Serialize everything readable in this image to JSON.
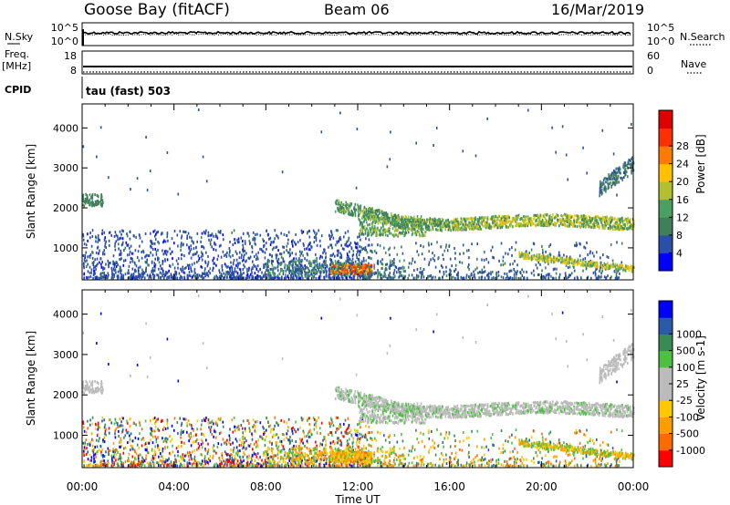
{
  "header": {
    "title_left": "Goose Bay (fitACF)",
    "title_center": "Beam 06",
    "title_right": "16/Mar/2019"
  },
  "nsky_panel": {
    "left_label": "N.Sky",
    "right_label": "N.Search",
    "ticks_left": [
      "10^5",
      "10^0"
    ],
    "ticks_right": [
      "10^5",
      "10^0"
    ]
  },
  "freq_panel": {
    "left_label_1": "Freq.",
    "left_label_2": "[MHz]",
    "right_label": "Nave",
    "ticks_left": [
      "18",
      "8"
    ],
    "ticks_right": [
      "60",
      "0"
    ]
  },
  "cpid": {
    "label": "CPID",
    "value": "tau (fast) 503"
  },
  "colors": {
    "power": [
      "#0000ff",
      "#2a4fa8",
      "#3f7f5a",
      "#4aa060",
      "#b0c030",
      "#ffc000",
      "#ff7a00",
      "#ff3000",
      "#e00000"
    ],
    "velocity": [
      "#ff0000",
      "#ff6a00",
      "#ff9c00",
      "#ffc800",
      "#bbbbbb",
      "#bbbbbb",
      "#4cc040",
      "#3a8a55",
      "#2a5aa8",
      "#0000ff"
    ]
  },
  "chart_data": [
    {
      "type": "heatmap",
      "name": "power",
      "xlabel": "",
      "ylabel": "Slant Range [km]",
      "xlim": [
        0,
        24
      ],
      "ylim": [
        200,
        4600
      ],
      "yticks": [
        "1000",
        "2000",
        "3000",
        "4000"
      ],
      "colorbar_label": "Power [dB]",
      "colorbar_ticks": [
        "4",
        "8",
        "12",
        "16",
        "20",
        "24",
        "28"
      ],
      "features": [
        {
          "desc": "echo band 00:00-00:50",
          "range_km": [
            2050,
            2350
          ],
          "level": 2
        },
        {
          "desc": "sporadic near-range clutter 00:00-12:00",
          "range_km": [
            300,
            1400
          ],
          "level": 1
        },
        {
          "desc": "strong near-range echoes 11:00-12:30",
          "range_km": [
            350,
            600
          ],
          "level": 7
        },
        {
          "desc": "band 11:00-24:00",
          "range_km": [
            1400,
            2100
          ],
          "level": 4
        },
        {
          "desc": "near-range echoes 19:00-24:00",
          "range_km": [
            400,
            800
          ],
          "level": 5
        },
        {
          "desc": "far echoes 22:30-24:00",
          "range_km": [
            2300,
            3100
          ],
          "level": 2
        }
      ]
    },
    {
      "type": "heatmap",
      "name": "velocity",
      "xlabel": "Time UT",
      "ylabel": "Slant Range [km]",
      "xlim": [
        0,
        24
      ],
      "ylim": [
        200,
        4600
      ],
      "xticks": [
        "00:00",
        "04:00",
        "08:00",
        "12:00",
        "16:00",
        "20:00",
        "00:00"
      ],
      "yticks": [
        "1000",
        "2000",
        "3000",
        "4000"
      ],
      "colorbar_label": "Velocity [m s-1]",
      "colorbar_ticks": [
        "-1000",
        "-500",
        "-100",
        "-25",
        "25",
        "100",
        "500",
        "1000"
      ]
    }
  ]
}
